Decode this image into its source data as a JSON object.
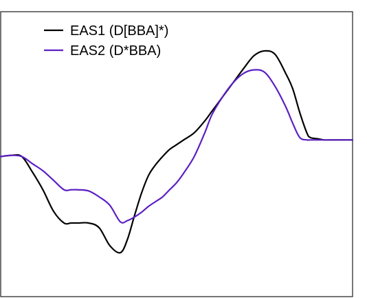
{
  "chart_data": {
    "type": "line",
    "title": "",
    "xlabel": "",
    "ylabel": "",
    "xlim": [
      0,
      100
    ],
    "ylim": [
      -1.2,
      1.2
    ],
    "grid": false,
    "legend_position": "top-left",
    "series": [
      {
        "name": "EAS1 (D[BBA]*)",
        "color": "#000000",
        "x": [
          0,
          3,
          6,
          9,
          12,
          15,
          18,
          20,
          22,
          25,
          28,
          31,
          34,
          36,
          38,
          40,
          42,
          44,
          46,
          48,
          50,
          52,
          55,
          58,
          60,
          63,
          66,
          69,
          72,
          75,
          78,
          81,
          83,
          85,
          87,
          88,
          90,
          92,
          94,
          96,
          98,
          100
        ],
        "y": [
          -0.02,
          -0.01,
          -0.02,
          -0.15,
          -0.3,
          -0.48,
          -0.58,
          -0.58,
          -0.58,
          -0.58,
          -0.62,
          -0.77,
          -0.83,
          -0.72,
          -0.52,
          -0.33,
          -0.18,
          -0.09,
          -0.02,
          0.04,
          0.08,
          0.12,
          0.18,
          0.28,
          0.36,
          0.48,
          0.6,
          0.72,
          0.83,
          0.87,
          0.84,
          0.68,
          0.55,
          0.35,
          0.18,
          0.14,
          0.13,
          0.12,
          0.12,
          0.12,
          0.12,
          0.12
        ]
      },
      {
        "name": "EAS2 (D*BBA)",
        "color": "#5b1fc4",
        "x": [
          0,
          3,
          6,
          9,
          12,
          15,
          18,
          20,
          22,
          25,
          28,
          31,
          34,
          36,
          38,
          40,
          42,
          44,
          46,
          48,
          50,
          52,
          55,
          58,
          60,
          63,
          66,
          69,
          72,
          75,
          78,
          81,
          83,
          85,
          87,
          88,
          90,
          92,
          94,
          96,
          98,
          100
        ],
        "y": [
          -0.02,
          -0.01,
          -0.02,
          -0.08,
          -0.14,
          -0.22,
          -0.3,
          -0.3,
          -0.3,
          -0.31,
          -0.36,
          -0.43,
          -0.57,
          -0.56,
          -0.53,
          -0.49,
          -0.44,
          -0.4,
          -0.36,
          -0.3,
          -0.24,
          -0.16,
          -0.02,
          0.18,
          0.33,
          0.48,
          0.6,
          0.68,
          0.71,
          0.69,
          0.57,
          0.4,
          0.26,
          0.14,
          0.12,
          0.12,
          0.12,
          0.12,
          0.12,
          0.12,
          0.12,
          0.12
        ]
      }
    ]
  }
}
